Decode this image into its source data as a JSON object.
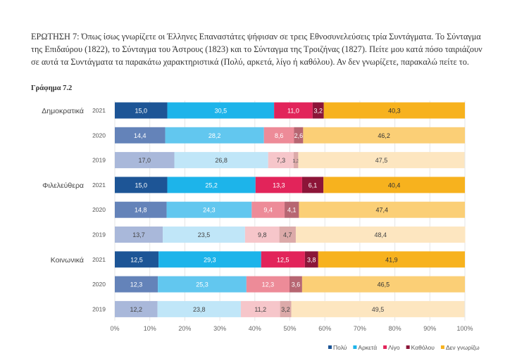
{
  "question": "ΕΡΩΤΗΣΗ 7: Όπως ίσως γνωρίζετε οι Έλληνες Επαναστάτες ψήφισαν σε τρεις Εθνοσυνελεύσεις τρία Συντάγματα. Το Σύνταγμα της Επιδαύρου (1822), το Σύνταγμα του Άστρους (1823) και το Σύνταγμα της Τροιζήνας (1827). Πείτε μου κατά πόσο ταιριάζουν σε αυτά τα Συντάγματα τα παρακάτω χαρακτηριστικά (Πολύ, αρκετά, λίγο ή καθόλου). Αν δεν γνωρίζετε, παρακαλώ πείτε το.",
  "chart_data": {
    "type": "bar",
    "orientation": "horizontal",
    "stacked": true,
    "title": "Γράφημα 7.2",
    "xlim": [
      0,
      100
    ],
    "xticks": [
      "0%",
      "10%",
      "20%",
      "30%",
      "40%",
      "50%",
      "60%",
      "70%",
      "80%",
      "90%",
      "100%"
    ],
    "grid": true,
    "legend_position": "bottom-right",
    "series_names": [
      "Πολύ",
      "Αρκετά",
      "Λίγο",
      "Καθόλου",
      "Δεν γνωρίζω"
    ],
    "colors": {
      "2021": [
        "#1d5596",
        "#1db4ea",
        "#e2245a",
        "#8c1538",
        "#f7b21e"
      ],
      "2020": [
        "#6483b9",
        "#62c7ef",
        "#ed8b98",
        "#b76672",
        "#fbcf76"
      ],
      "2019": [
        "#a9b8da",
        "#c0e6f8",
        "#f6c6ca",
        "#dcaaa9",
        "#fde6c0"
      ]
    },
    "groups": [
      {
        "label": "Δημοκρατικά",
        "rows": [
          {
            "year": "2021",
            "values": [
              15.0,
              30.5,
              11.0,
              3.2,
              40.3
            ]
          },
          {
            "year": "2020",
            "values": [
              14.4,
              28.2,
              8.6,
              2.6,
              46.2
            ]
          },
          {
            "year": "2019",
            "values": [
              17.0,
              26.8,
              7.3,
              1.3,
              47.5
            ]
          }
        ]
      },
      {
        "label": "Φιλελεύθερα",
        "rows": [
          {
            "year": "2021",
            "values": [
              15.0,
              25.2,
              13.3,
              6.1,
              40.4
            ]
          },
          {
            "year": "2020",
            "values": [
              14.8,
              24.3,
              9.4,
              4.1,
              47.4
            ]
          },
          {
            "year": "2019",
            "values": [
              13.7,
              23.5,
              9.8,
              4.7,
              48.4
            ]
          }
        ]
      },
      {
        "label": "Κοινωνικά",
        "rows": [
          {
            "year": "2021",
            "values": [
              12.5,
              29.3,
              12.5,
              3.8,
              41.9
            ]
          },
          {
            "year": "2020",
            "values": [
              12.3,
              25.3,
              12.3,
              3.6,
              46.5
            ]
          },
          {
            "year": "2019",
            "values": [
              12.2,
              23.8,
              11.2,
              3.2,
              49.5
            ]
          }
        ]
      }
    ]
  }
}
